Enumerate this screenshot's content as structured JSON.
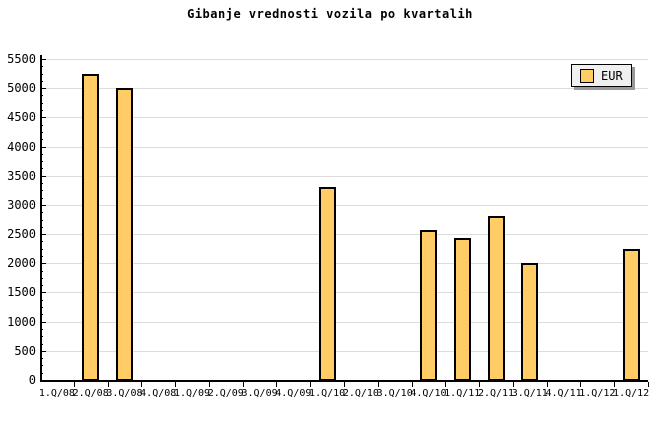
{
  "legend": {
    "label": "EUR",
    "swatch_color": "#ffcc66",
    "position": "top-right"
  },
  "chart_data": {
    "type": "bar",
    "title": "Gibanje vrednosti vozila po kvartalih",
    "xlabel": "",
    "ylabel": "",
    "categories": [
      "1.Q/08",
      "2.Q/08",
      "3.Q/08",
      "4.Q/08",
      "1.Q/09",
      "2.Q/09",
      "3.Q/09",
      "4.Q/09",
      "1.Q/10",
      "2.Q/10",
      "3.Q/10",
      "4.Q/10",
      "1.Q/11",
      "2.Q/11",
      "3.Q/11",
      "4.Q/11",
      "1.Q/12",
      "1.Q/12"
    ],
    "series": [
      {
        "name": "EUR",
        "values": [
          null,
          5250,
          5000,
          null,
          null,
          null,
          null,
          null,
          3300,
          null,
          null,
          2570,
          2430,
          2810,
          2000,
          null,
          null,
          2250
        ]
      }
    ],
    "ylim": [
      0,
      5500
    ],
    "yticks": [
      0,
      500,
      1000,
      1500,
      2000,
      2500,
      3000,
      3500,
      4000,
      4500,
      5000,
      5500
    ],
    "grid": "horizontal",
    "legend_position": "top-right",
    "colors": {
      "bar_fill": "#ffcc66",
      "bar_border": "#000000",
      "gridline": "#dcdcdc",
      "axis": "#000000",
      "text": "#000000",
      "background": "#ffffff",
      "legend_bg": "#f0f0f0",
      "legend_shadow": "#999999"
    }
  }
}
